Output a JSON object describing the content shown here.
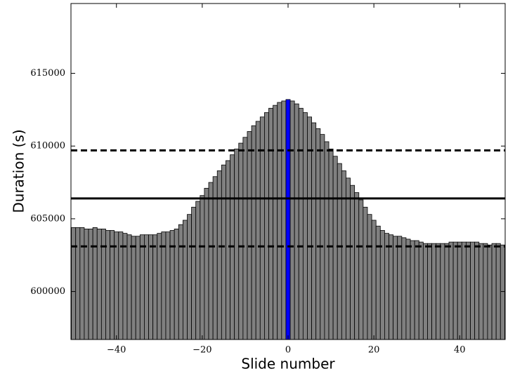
{
  "chart_data": {
    "type": "bar",
    "xlabel": "Slide number",
    "ylabel": "Duration (s)",
    "x": [
      -50,
      -49,
      -48,
      -47,
      -46,
      -45,
      -44,
      -43,
      -42,
      -41,
      -40,
      -39,
      -38,
      -37,
      -36,
      -35,
      -34,
      -33,
      -32,
      -31,
      -30,
      -29,
      -28,
      -27,
      -26,
      -25,
      -24,
      -23,
      -22,
      -21,
      -20,
      -19,
      -18,
      -17,
      -16,
      -15,
      -14,
      -13,
      -12,
      -11,
      -10,
      -9,
      -8,
      -7,
      -6,
      -5,
      -4,
      -3,
      -2,
      -1,
      0,
      1,
      2,
      3,
      4,
      5,
      6,
      7,
      8,
      9,
      10,
      11,
      12,
      13,
      14,
      15,
      16,
      17,
      18,
      19,
      20,
      21,
      22,
      23,
      24,
      25,
      26,
      27,
      28,
      29,
      30,
      31,
      32,
      33,
      34,
      35,
      36,
      37,
      38,
      39,
      40,
      41,
      42,
      43,
      44,
      45,
      46,
      47,
      48,
      49,
      50
    ],
    "values": [
      604400,
      604400,
      604400,
      604300,
      604300,
      604400,
      604300,
      604300,
      604200,
      604200,
      604100,
      604100,
      604000,
      603900,
      603800,
      603800,
      603900,
      603900,
      603900,
      603900,
      604000,
      604100,
      604100,
      604200,
      604300,
      604600,
      604900,
      605300,
      605800,
      606200,
      606600,
      607100,
      607500,
      607900,
      608300,
      608700,
      609000,
      609400,
      609800,
      610200,
      610600,
      611000,
      611400,
      611700,
      612000,
      612300,
      612600,
      612800,
      613000,
      613100,
      613200,
      613100,
      612900,
      612600,
      612300,
      612000,
      611600,
      611200,
      610800,
      610300,
      609800,
      609300,
      608800,
      608300,
      607800,
      607300,
      606800,
      606300,
      605800,
      605300,
      604900,
      604500,
      604200,
      604000,
      603900,
      603800,
      603800,
      603700,
      603600,
      603500,
      603500,
      603400,
      603300,
      603300,
      603300,
      603300,
      603300,
      603300,
      603400,
      603400,
      603400,
      603400,
      603400,
      603400,
      603400,
      603300,
      603300,
      603200,
      603300,
      603300,
      603200
    ],
    "colors": [
      "#808080",
      "#808080",
      "#808080",
      "#808080",
      "#808080",
      "#808080",
      "#808080",
      "#808080",
      "#808080",
      "#808080",
      "#808080",
      "#808080",
      "#808080",
      "#808080",
      "#808080",
      "#808080",
      "#808080",
      "#808080",
      "#808080",
      "#808080",
      "#808080",
      "#808080",
      "#808080",
      "#808080",
      "#808080",
      "#808080",
      "#808080",
      "#808080",
      "#808080",
      "#808080",
      "#808080",
      "#808080",
      "#808080",
      "#808080",
      "#808080",
      "#808080",
      "#808080",
      "#808080",
      "#808080",
      "#808080",
      "#808080",
      "#808080",
      "#808080",
      "#808080",
      "#808080",
      "#808080",
      "#808080",
      "#808080",
      "#808080",
      "#808080",
      "#0000ff",
      "#808080",
      "#808080",
      "#808080",
      "#808080",
      "#808080",
      "#808080",
      "#808080",
      "#808080",
      "#808080",
      "#808080",
      "#808080",
      "#808080",
      "#808080",
      "#808080",
      "#808080",
      "#808080",
      "#808080",
      "#808080",
      "#808080",
      "#808080",
      "#808080",
      "#808080",
      "#808080",
      "#808080",
      "#808080",
      "#808080",
      "#808080",
      "#808080",
      "#808080",
      "#808080",
      "#808080",
      "#808080",
      "#808080",
      "#808080",
      "#808080",
      "#808080",
      "#808080",
      "#808080",
      "#808080",
      "#808080",
      "#808080",
      "#808080",
      "#808080",
      "#808080",
      "#808080",
      "#808080",
      "#808080",
      "#808080",
      "#808080",
      "#808080"
    ],
    "lines": [
      {
        "value": 606400,
        "style": "solid"
      },
      {
        "value": 609700,
        "style": "dashed"
      },
      {
        "value": 603100,
        "style": "dashed"
      }
    ],
    "xlim": [
      -50.6,
      50.6
    ],
    "ylim": [
      596700,
      619800
    ],
    "xticks": [
      {
        "value": -40,
        "label": "−40"
      },
      {
        "value": -20,
        "label": "−20"
      },
      0,
      20,
      40
    ],
    "yticks": [
      600000,
      605000,
      610000,
      615000
    ]
  }
}
